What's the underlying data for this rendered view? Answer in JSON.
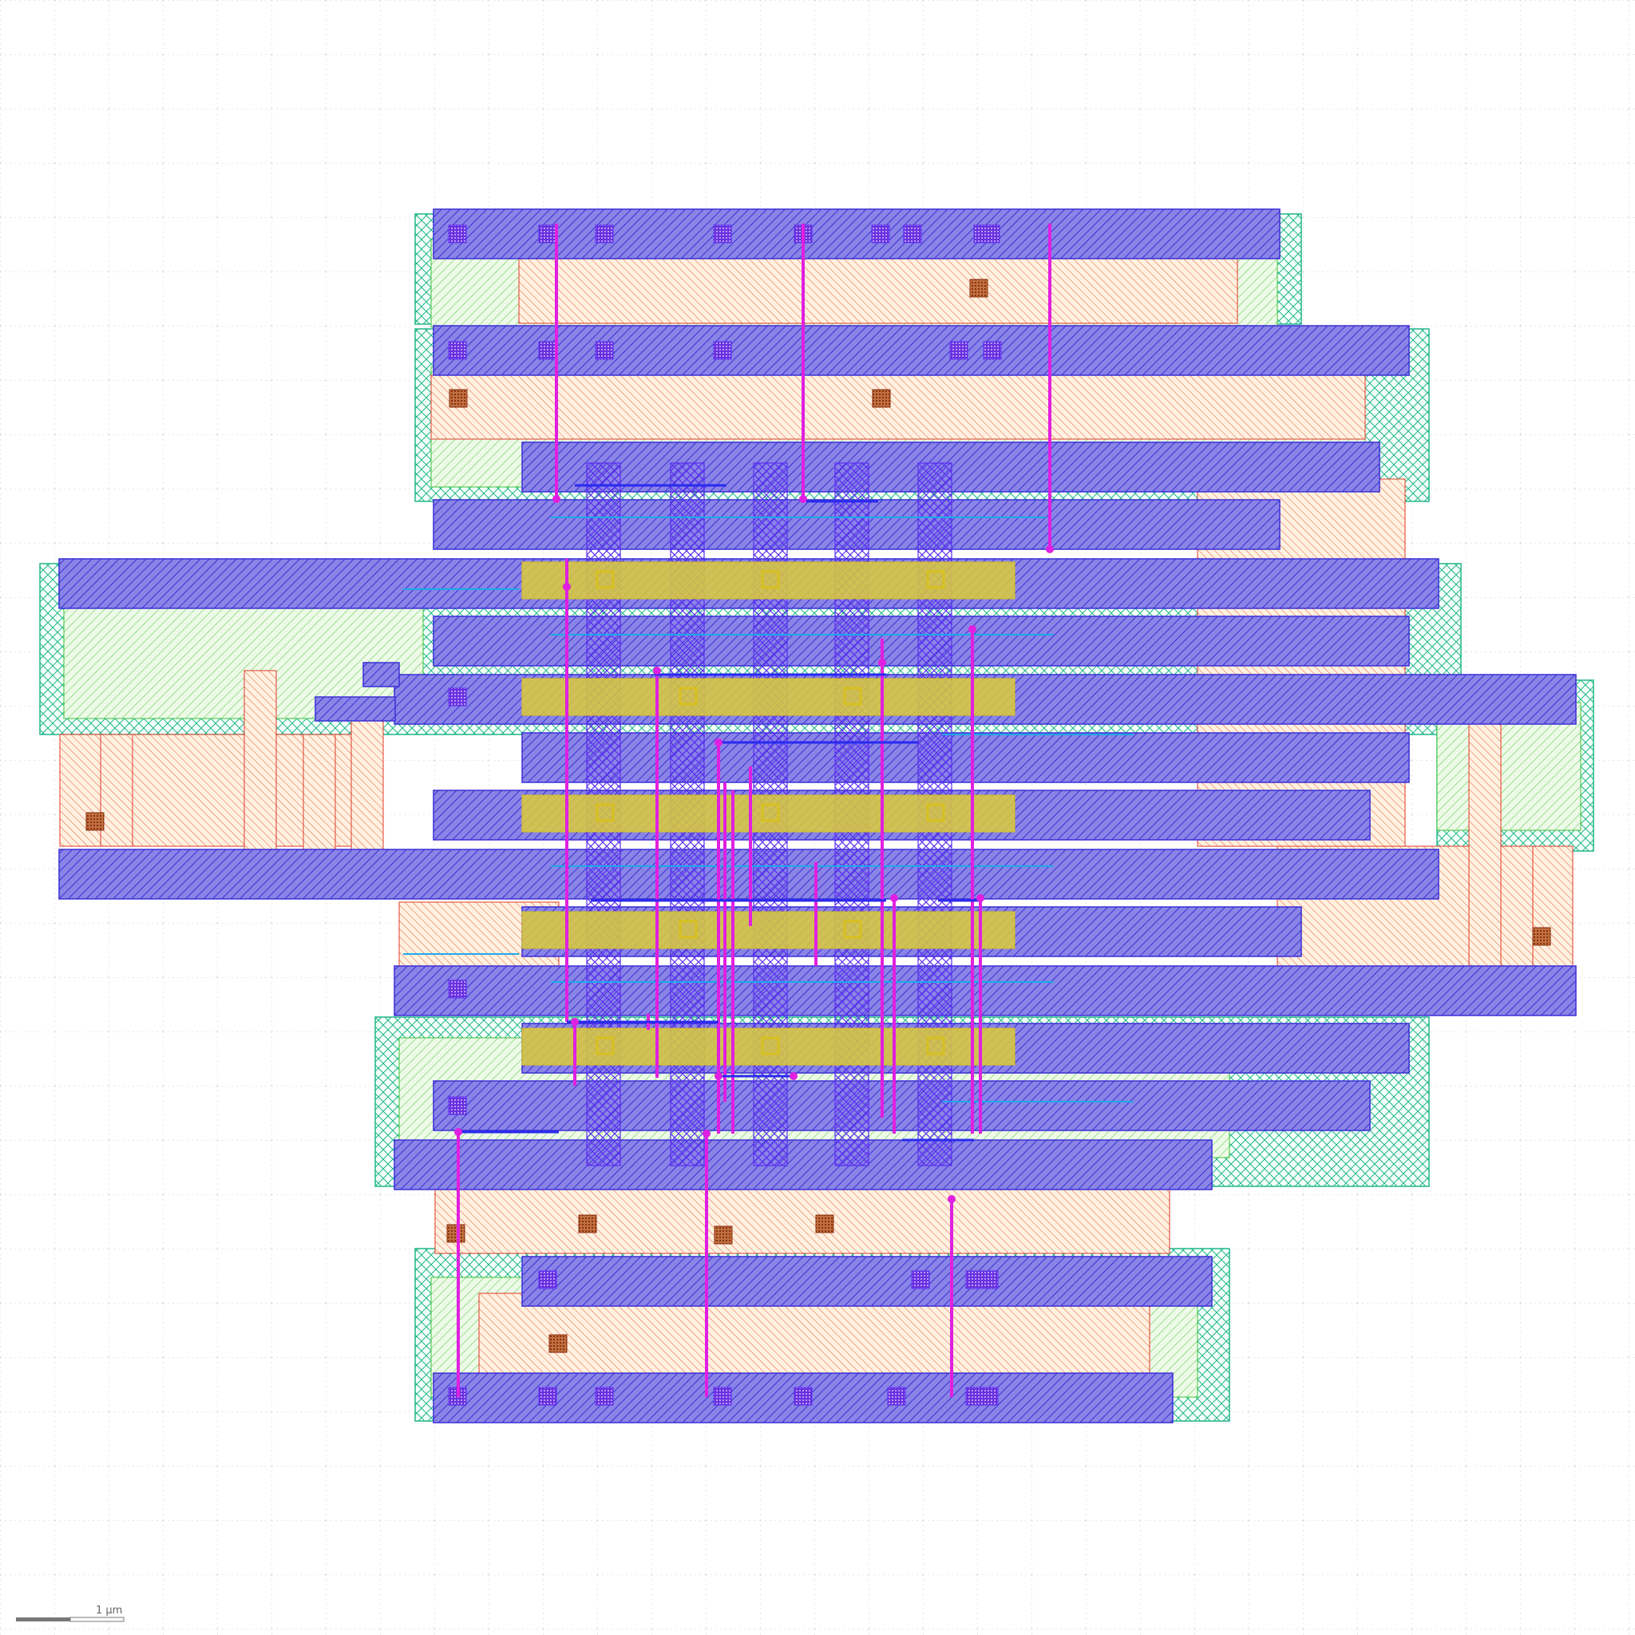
{
  "scale_bar": {
    "label": "1 μm"
  },
  "colors": {
    "background": "#ffffff",
    "grid": "#c7c7c7",
    "metal": "#3a2fd6",
    "metal_fill": "#7f78e0",
    "poly": "#e03a2a",
    "diffusion": "#3ac43a",
    "nwell": "#21b58c",
    "gate": "#d8c020",
    "via": "#e020e0",
    "contact": "#a8502a",
    "local_int": "#1ea8e8"
  },
  "layers": [
    "nwell-layer",
    "diffusion-layer",
    "poly-layer",
    "contact-layer",
    "metal1-layer",
    "gate-layer",
    "via-layer",
    "local-interconnect-layer"
  ]
}
